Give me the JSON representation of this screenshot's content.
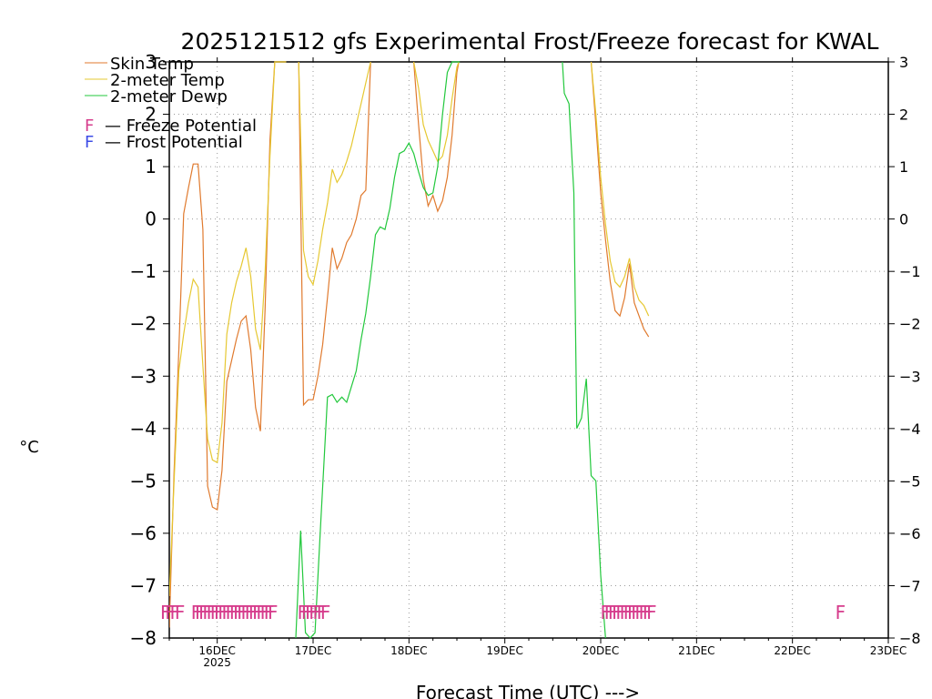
{
  "chart_data": {
    "type": "line",
    "title": "2025121512 gfs Experimental Frost/Freeze forecast for KWAL",
    "xlabel": "Forecast Time (UTC) --->",
    "ylabel": "°C",
    "ylim": [
      -8,
      3
    ],
    "xlim": [
      15.5,
      23.0
    ],
    "grid": true,
    "y_ticks": [
      -8,
      -7,
      -6,
      -5,
      -4,
      -3,
      -2,
      -1,
      0,
      1,
      2,
      3
    ],
    "y_tick_labels": [
      "−8",
      "−7",
      "−6",
      "−5",
      "−4",
      "−3",
      "−2",
      "−1",
      "0",
      "1",
      "2",
      "3"
    ],
    "x_ticks": [
      {
        "day": 16,
        "label": "16DEC",
        "sublabel": "2025"
      },
      {
        "day": 17,
        "label": "17DEC",
        "sublabel": ""
      },
      {
        "day": 18,
        "label": "18DEC",
        "sublabel": ""
      },
      {
        "day": 19,
        "label": "19DEC",
        "sublabel": ""
      },
      {
        "day": 20,
        "label": "20DEC",
        "sublabel": ""
      },
      {
        "day": 21,
        "label": "21DEC",
        "sublabel": ""
      },
      {
        "day": 22,
        "label": "22DEC",
        "sublabel": ""
      },
      {
        "day": 23,
        "label": "23DEC",
        "sublabel": ""
      }
    ],
    "series": [
      {
        "name": "Skin Temp",
        "color": "#e07a2e",
        "x": [
          15.5,
          15.55,
          15.6,
          15.65,
          15.7,
          15.75,
          15.8,
          15.85,
          15.9,
          15.95,
          16.0,
          16.05,
          16.1,
          16.15,
          16.2,
          16.25,
          16.3,
          16.35,
          16.4,
          16.45,
          16.5,
          16.55,
          16.6,
          16.65,
          16.7,
          16.72,
          null,
          16.85,
          16.9,
          16.95,
          17.0,
          17.05,
          17.1,
          17.15,
          17.2,
          17.25,
          17.3,
          17.35,
          17.4,
          17.45,
          17.5,
          17.55,
          17.6,
          null,
          18.05,
          18.1,
          18.15,
          18.2,
          18.25,
          18.3,
          18.35,
          18.4,
          18.45,
          18.5,
          18.52,
          null,
          19.9,
          19.95,
          20.0,
          20.05,
          20.1,
          20.15,
          20.2,
          20.25,
          20.3,
          20.35,
          20.4,
          20.45,
          20.5
        ],
        "y": [
          -7.8,
          -4.8,
          -2.5,
          0.1,
          0.6,
          1.05,
          1.05,
          -0.2,
          -5.1,
          -5.5,
          -5.55,
          -4.8,
          -3.1,
          -2.7,
          -2.3,
          -1.95,
          -1.85,
          -2.5,
          -3.6,
          -4.05,
          -1.7,
          1.5,
          3.0,
          3.0,
          3.0,
          3.0,
          null,
          3.0,
          -3.55,
          -3.45,
          -3.45,
          -3.0,
          -2.4,
          -1.5,
          -0.55,
          -0.95,
          -0.75,
          -0.45,
          -0.3,
          0.0,
          0.45,
          0.55,
          3.0,
          null,
          3.0,
          1.8,
          0.75,
          0.25,
          0.45,
          0.15,
          0.35,
          0.8,
          1.6,
          2.8,
          3.0,
          null,
          3.0,
          1.8,
          0.5,
          -0.4,
          -1.2,
          -1.75,
          -1.85,
          -1.5,
          -0.85,
          -1.6,
          -1.85,
          -2.1,
          -2.25
        ]
      },
      {
        "name": "2-meter Temp",
        "color": "#e6c832",
        "x": [
          15.5,
          15.55,
          15.6,
          15.65,
          15.7,
          15.75,
          15.8,
          15.85,
          15.9,
          15.95,
          16.0,
          16.05,
          16.1,
          16.15,
          16.2,
          16.25,
          16.3,
          16.35,
          16.4,
          16.45,
          16.5,
          16.55,
          16.6,
          16.65,
          16.72,
          null,
          16.85,
          16.9,
          16.95,
          17.0,
          17.05,
          17.1,
          17.15,
          17.2,
          17.25,
          17.3,
          17.35,
          17.4,
          17.45,
          17.5,
          17.55,
          17.6,
          null,
          18.05,
          18.1,
          18.15,
          18.2,
          18.25,
          18.3,
          18.35,
          18.4,
          18.45,
          18.5,
          18.52,
          null,
          19.9,
          19.95,
          20.0,
          20.05,
          20.1,
          20.15,
          20.2,
          20.25,
          20.3,
          20.35,
          20.4,
          20.45,
          20.5
        ],
        "y": [
          -7.2,
          -5.0,
          -2.9,
          -2.2,
          -1.6,
          -1.15,
          -1.3,
          -2.8,
          -4.2,
          -4.6,
          -4.65,
          -3.9,
          -2.2,
          -1.6,
          -1.2,
          -0.9,
          -0.55,
          -1.1,
          -2.1,
          -2.5,
          -1.0,
          1.2,
          3.0,
          3.0,
          3.0,
          null,
          3.0,
          -0.6,
          -1.1,
          -1.25,
          -0.8,
          -0.2,
          0.3,
          0.95,
          0.7,
          0.85,
          1.1,
          1.4,
          1.8,
          2.2,
          2.6,
          3.0,
          null,
          3.0,
          2.5,
          1.8,
          1.5,
          1.3,
          1.1,
          1.2,
          1.6,
          2.3,
          2.9,
          3.0,
          null,
          3.0,
          2.0,
          0.8,
          -0.1,
          -0.8,
          -1.2,
          -1.3,
          -1.1,
          -0.75,
          -1.3,
          -1.55,
          -1.65,
          -1.85
        ]
      },
      {
        "name": "2-meter Dewp",
        "color": "#22c83c",
        "x": [
          16.82,
          16.87,
          16.92,
          16.97,
          17.02,
          17.08,
          17.15,
          17.2,
          17.25,
          17.3,
          17.35,
          17.4,
          17.45,
          17.5,
          17.55,
          17.6,
          17.65,
          17.7,
          17.75,
          17.8,
          17.85,
          17.9,
          17.95,
          18.0,
          18.05,
          18.1,
          18.15,
          18.2,
          18.25,
          18.3,
          18.35,
          18.4,
          18.45,
          18.5,
          18.53,
          null,
          19.6,
          19.62,
          19.67,
          19.72,
          19.75,
          19.8,
          19.85,
          19.9,
          19.95,
          20.0,
          20.05
        ],
        "y": [
          -8.0,
          -5.95,
          -7.9,
          -8.0,
          -7.9,
          -5.8,
          -3.4,
          -3.35,
          -3.5,
          -3.4,
          -3.5,
          -3.2,
          -2.9,
          -2.3,
          -1.8,
          -1.1,
          -0.3,
          -0.15,
          -0.2,
          0.2,
          0.8,
          1.25,
          1.3,
          1.45,
          1.25,
          0.9,
          0.6,
          0.45,
          0.5,
          1.0,
          2.0,
          2.8,
          3.0,
          3.0,
          3.0,
          null,
          3.0,
          2.4,
          2.2,
          0.5,
          -4.0,
          -3.8,
          -3.05,
          -4.9,
          -5.0,
          -6.8,
          -8.0
        ]
      }
    ],
    "freeze_potential": {
      "name": "Freeze Potential",
      "color": "#d63c8c",
      "marker": "F",
      "y": -7.5,
      "x": [
        15.46,
        15.51,
        15.56,
        15.61,
        15.78,
        15.82,
        15.86,
        15.9,
        15.94,
        15.98,
        16.02,
        16.06,
        16.1,
        16.14,
        16.18,
        16.22,
        16.26,
        16.3,
        16.34,
        16.38,
        16.42,
        16.46,
        16.5,
        16.54,
        16.58,
        16.89,
        16.93,
        16.97,
        17.01,
        17.05,
        17.09,
        17.13,
        20.05,
        20.09,
        20.13,
        20.17,
        20.21,
        20.25,
        20.29,
        20.33,
        20.37,
        20.41,
        20.45,
        20.49,
        20.53,
        22.5
      ]
    }
  },
  "legend": {
    "items": [
      {
        "text": "Skin Temp",
        "color": "#e07a2e"
      },
      {
        "text": "2-meter Temp",
        "color": "#e6c832"
      },
      {
        "text": "2-meter Dewp",
        "color": "#22c83c"
      }
    ],
    "freeze": {
      "marker": "F",
      "text": "— Freeze Potential",
      "color": "#d63c8c"
    },
    "frost": {
      "marker": "F",
      "text": "— Frost Potential",
      "color": "#3c4ce6"
    }
  }
}
